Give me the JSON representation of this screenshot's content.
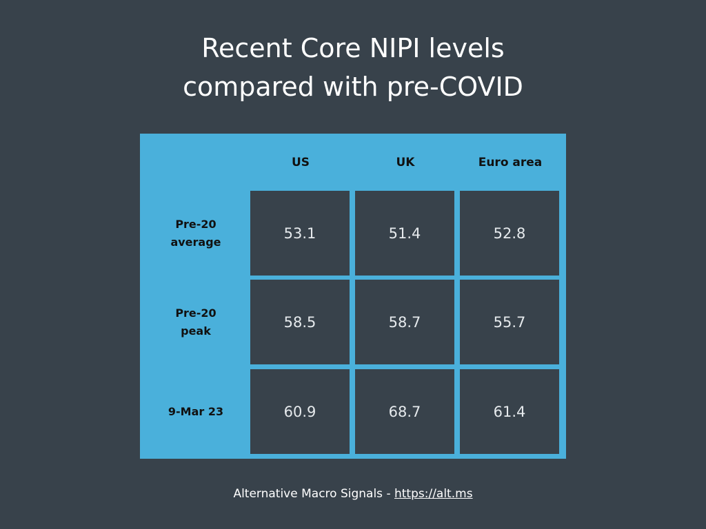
{
  "title": {
    "line1": "Recent Core NIPI levels",
    "line2": "compared with pre-COVID"
  },
  "table": {
    "columns": [
      "US",
      "UK",
      "Euro area"
    ],
    "rows": [
      {
        "label_line1": "Pre-20",
        "label_line2": "average",
        "values": [
          "53.1",
          "51.4",
          "52.8"
        ]
      },
      {
        "label_line1": "Pre-20",
        "label_line2": "peak",
        "values": [
          "58.5",
          "58.7",
          "55.7"
        ]
      },
      {
        "label_line1": "9-Mar 23",
        "label_line2": "",
        "values": [
          "60.9",
          "68.7",
          "61.4"
        ]
      }
    ]
  },
  "footer": {
    "source": "Alternative Macro Signals - ",
    "link": "https://alt.ms"
  },
  "colors": {
    "background": "#38424b",
    "table_accent": "#4ab0db"
  }
}
